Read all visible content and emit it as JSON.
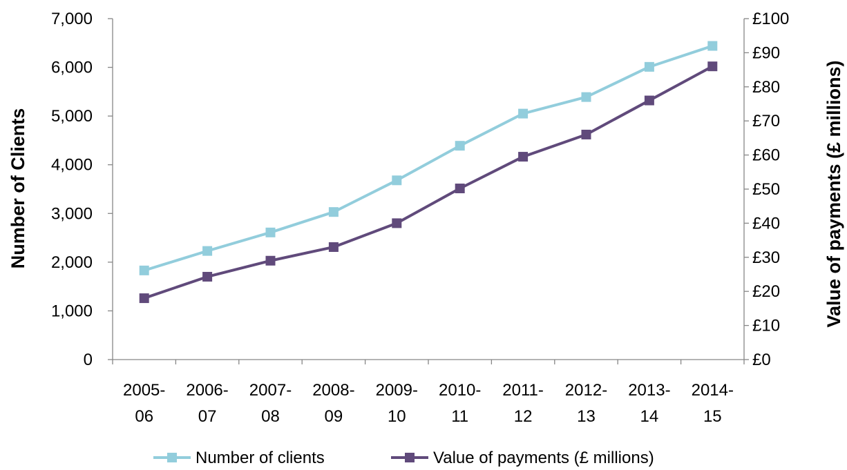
{
  "chart_data": {
    "type": "line",
    "categories": [
      [
        "2005-",
        "06"
      ],
      [
        "2006-",
        "07"
      ],
      [
        "2007-",
        "08"
      ],
      [
        "2008-",
        "09"
      ],
      [
        "2009-",
        "10"
      ],
      [
        "2010-",
        "11"
      ],
      [
        "2011-",
        "12"
      ],
      [
        "2012-",
        "13"
      ],
      [
        "2013-",
        "14"
      ],
      [
        "2014-",
        "15"
      ]
    ],
    "y_left": {
      "label": "Number of Clients",
      "range": [
        0,
        7000
      ],
      "ticks": [
        0,
        1000,
        2000,
        3000,
        4000,
        5000,
        6000,
        7000
      ],
      "tick_labels": [
        "0",
        "1,000",
        "2,000",
        "3,000",
        "4,000",
        "5,000",
        "6,000",
        "7,000"
      ]
    },
    "y_right": {
      "label": "Value of payments (£ millions)",
      "range": [
        0,
        100
      ],
      "ticks": [
        0,
        10,
        20,
        30,
        40,
        50,
        60,
        70,
        80,
        90,
        100
      ],
      "tick_labels": [
        "£0",
        "£10",
        "£20",
        "£30",
        "£40",
        "£50",
        "£60",
        "£70",
        "£80",
        "£90",
        "£100"
      ]
    },
    "series": [
      {
        "name": "Number of clients",
        "axis": "left",
        "color": "#92CDDC",
        "values": [
          1830,
          2230,
          2610,
          3030,
          3680,
          4390,
          5050,
          5390,
          6010,
          6440
        ]
      },
      {
        "name": "Value of payments (£ millions)",
        "axis": "right",
        "color": "#604A7B",
        "values": [
          18,
          24.3,
          29,
          33,
          40,
          50.2,
          59.5,
          66,
          76,
          86
        ]
      }
    ],
    "legend": "bottom",
    "grid": false
  }
}
